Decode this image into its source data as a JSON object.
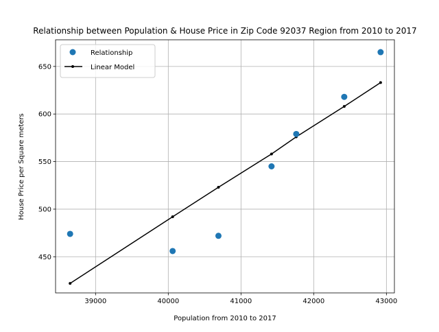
{
  "chart_data": {
    "type": "scatter",
    "title": "Relationship between Population & House Price in Zip Code 92037 Region from 2010 to 2017",
    "xlabel": "Population from 2010 to 2017",
    "ylabel": "House Price per Square meters",
    "xlim": [
      38450,
      43110
    ],
    "ylim": [
      412,
      678
    ],
    "xticks": [
      39000,
      40000,
      41000,
      42000,
      43000
    ],
    "yticks": [
      450,
      500,
      550,
      600,
      650
    ],
    "grid": true,
    "legend_position": "upper-left",
    "series": [
      {
        "name": "Relationship",
        "kind": "markers",
        "color": "#1f77b4",
        "x": [
          38650,
          40060,
          40690,
          41420,
          41760,
          42420,
          42920
        ],
        "y": [
          474,
          456,
          472,
          545,
          579,
          618,
          665
        ]
      },
      {
        "name": "Linear Model",
        "kind": "line",
        "color": "#000000",
        "x": [
          38650,
          40060,
          40690,
          41420,
          41760,
          42420,
          42920
        ],
        "y": [
          422,
          492,
          523,
          558,
          576,
          608,
          633
        ]
      }
    ]
  }
}
